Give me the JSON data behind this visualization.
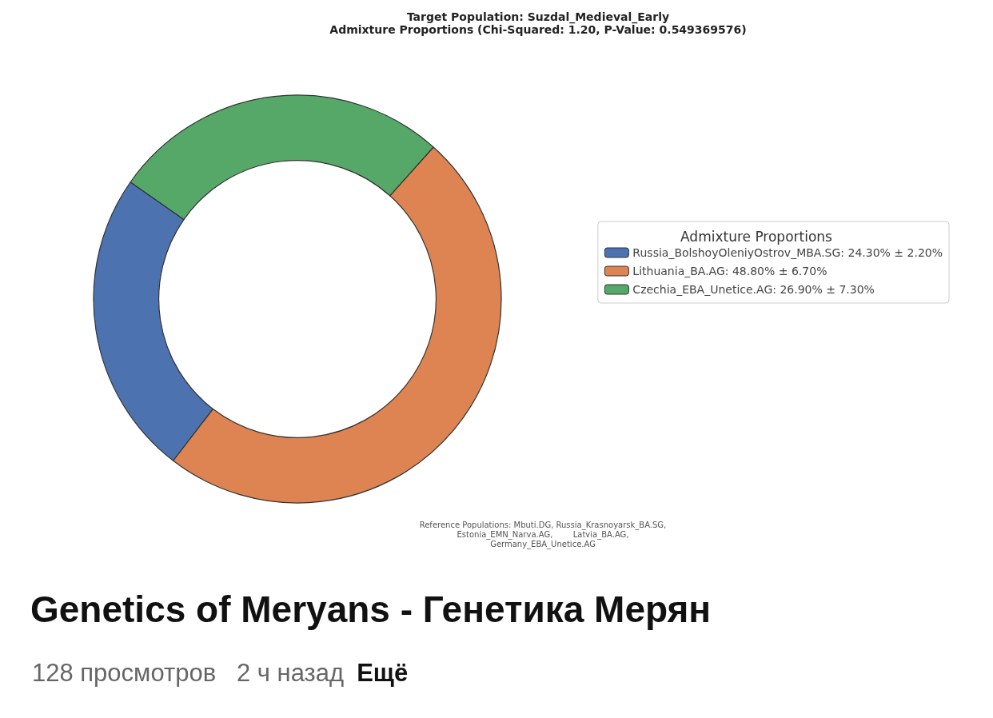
{
  "chart_data": {
    "type": "donut",
    "title": "Target Population: Suzdal_Medieval_Early\nAdmixture Proportions (Chi-Squared: 1.20, P-Value: 0.549369576)",
    "legend_title": "Admixture Proportions",
    "categories": [
      "Russia_BolshoyOleniyOstrov_MBA.SG: 24.30% ± 2.20%",
      "Lithuania_BA.AG: 48.80% ± 6.70%",
      "Czechia_EBA_Unetice.AG: 26.90% ± 7.30%"
    ],
    "values": [
      24.3,
      48.8,
      26.9
    ],
    "colors": [
      "#4c72b0",
      "#dd8452",
      "#55a868"
    ],
    "legend": "right",
    "annotations": [
      "Reference Populations: Mbuti.DG, Russia_Krasnoyarsk_BA.SG,\nEstonia_EMN_Narva.AG,        Latvia_BA.AG,\nGermany_EBA_Unetice.AG",
      "Genetics of Meryans - Генетика Мерян",
      "128 просмотров   2 ч назад",
      "Ещё"
    ]
  }
}
